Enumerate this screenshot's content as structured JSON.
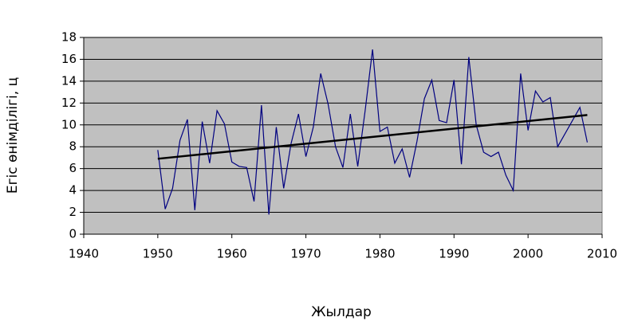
{
  "chart_data": {
    "type": "line",
    "x_label": "Жылдар",
    "y_label": "Егіс өнімділігі, ц",
    "xlim": [
      1940,
      2010
    ],
    "xticks": [
      1940,
      1950,
      1960,
      1970,
      1980,
      1990,
      2000,
      2010
    ],
    "ylim": [
      0,
      18
    ],
    "yticks": [
      0,
      2,
      4,
      6,
      8,
      10,
      12,
      14,
      16,
      18
    ],
    "grid": true,
    "plot_background": "#c0c0c0",
    "x": [
      1950,
      1951,
      1952,
      1953,
      1954,
      1955,
      1956,
      1957,
      1958,
      1959,
      1960,
      1961,
      1962,
      1963,
      1964,
      1965,
      1966,
      1967,
      1968,
      1969,
      1970,
      1971,
      1972,
      1973,
      1974,
      1975,
      1976,
      1977,
      1978,
      1979,
      1980,
      1981,
      1982,
      1983,
      1984,
      1985,
      1986,
      1987,
      1988,
      1989,
      1990,
      1991,
      1992,
      1993,
      1994,
      1995,
      1996,
      1997,
      1998,
      1999,
      2000,
      2001,
      2002,
      2003,
      2004,
      2007,
      2008
    ],
    "color": "#000080",
    "values": [
      7.7,
      2.3,
      4.2,
      8.6,
      10.5,
      2.2,
      10.3,
      6.5,
      11.3,
      10.1,
      6.6,
      6.2,
      6.1,
      3.0,
      11.8,
      1.8,
      9.8,
      4.2,
      8.3,
      11.0,
      7.1,
      9.8,
      14.7,
      11.9,
      8.0,
      6.1,
      11.0,
      6.2,
      11.3,
      16.9,
      9.4,
      9.8,
      6.5,
      7.8,
      5.2,
      8.5,
      12.4,
      14.1,
      10.4,
      10.2,
      14.1,
      6.4,
      16.2,
      10.0,
      7.5,
      7.1,
      7.5,
      5.4,
      4.0,
      14.7,
      9.5,
      13.1,
      12.1,
      12.5,
      8.0,
      11.6,
      8.4
    ],
    "trendline": {
      "x": [
        1950,
        2008
      ],
      "values": [
        6.9,
        10.9
      ],
      "color": "#000000"
    }
  }
}
